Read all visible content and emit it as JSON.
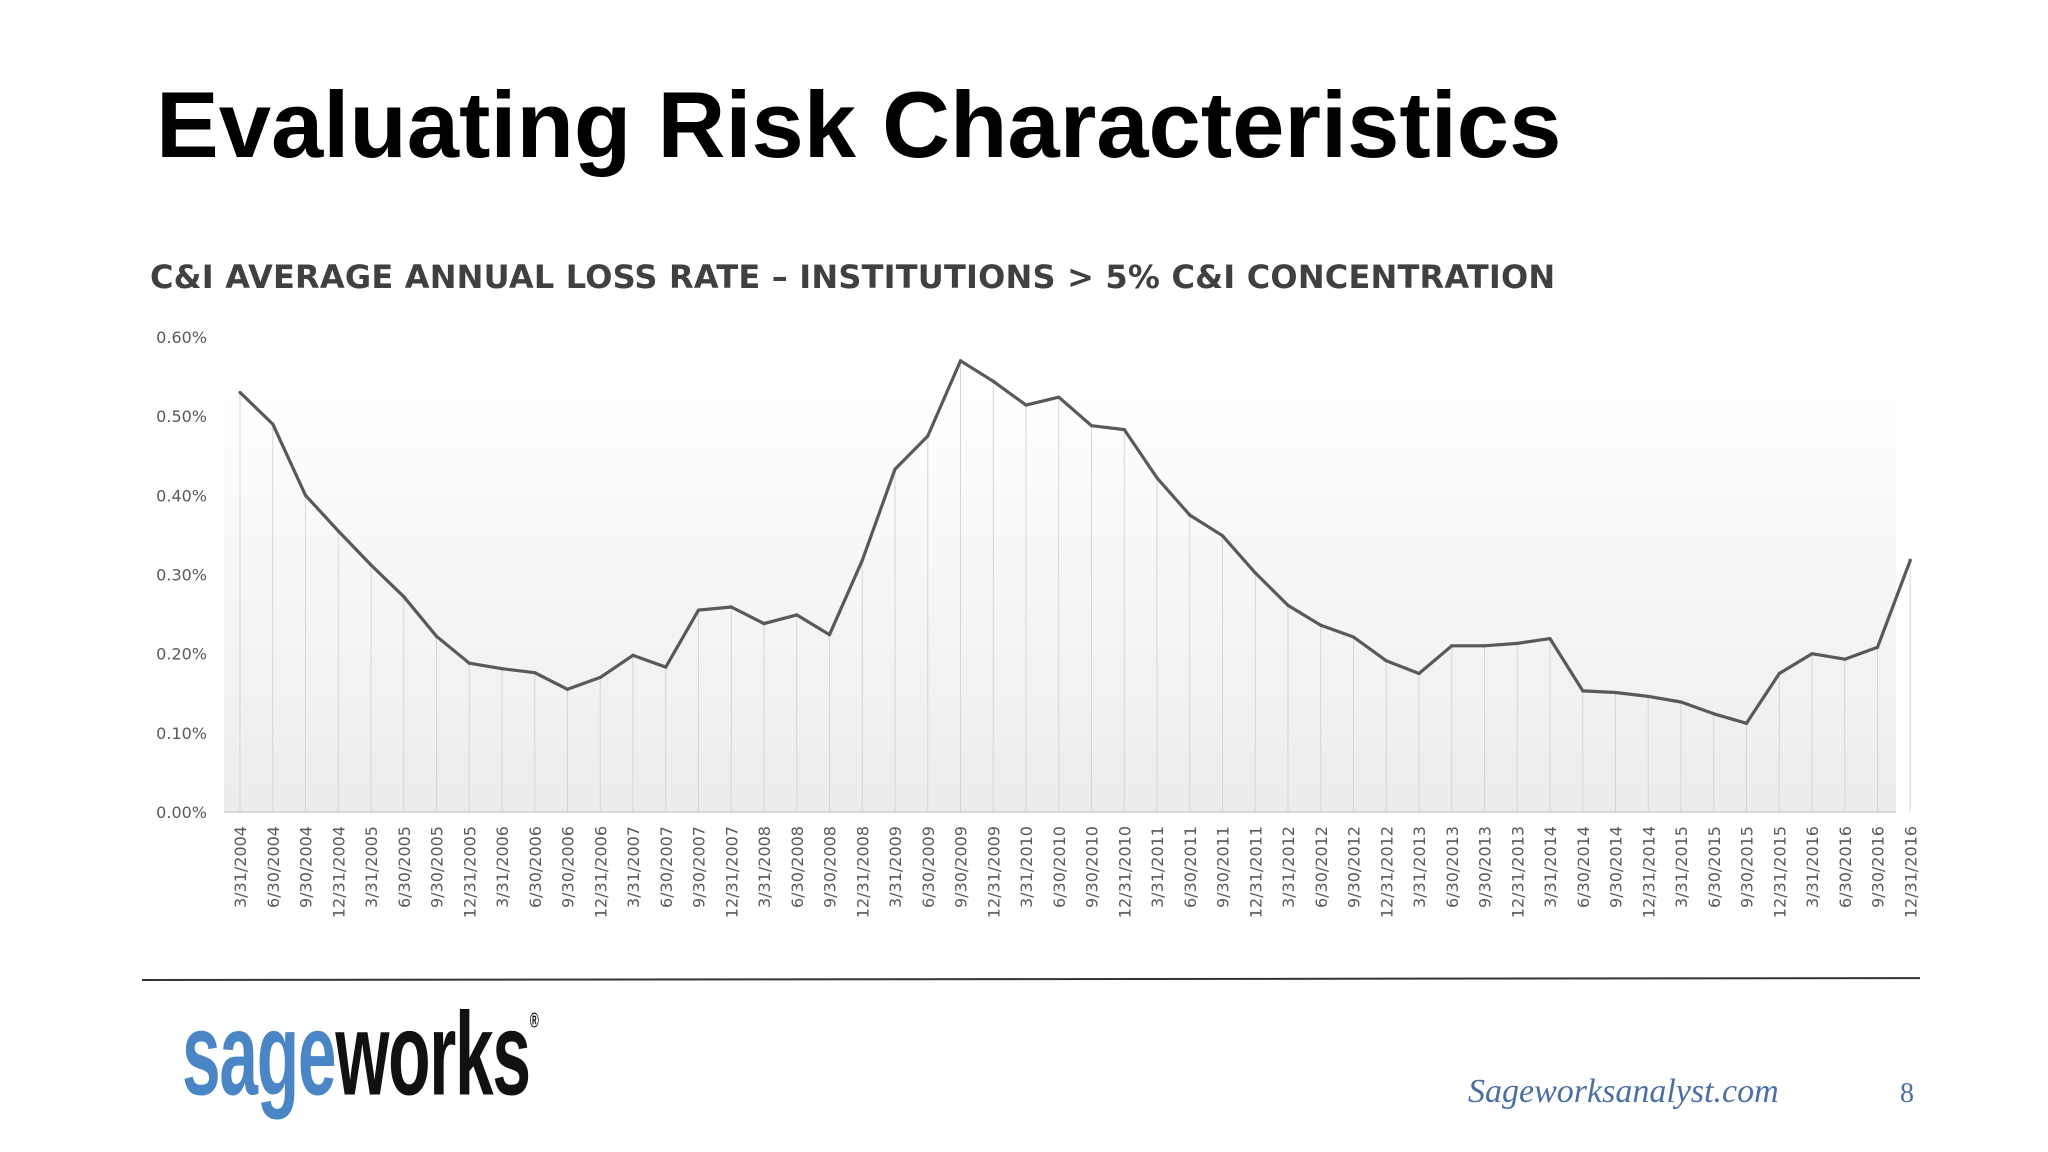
{
  "slide": {
    "title": "Evaluating Risk Characteristics",
    "footer_url": "Sageworksanalyst.com",
    "page_number": "8"
  },
  "logo": {
    "part1": "sage",
    "part2": "works",
    "mark": "®"
  },
  "colors": {
    "line": "#595959",
    "brand_blue": "#4a86c5",
    "url_blue": "#4a6fa5",
    "title": "#000000"
  },
  "chart_data": {
    "type": "line",
    "title": "C&I AVERAGE ANNUAL LOSS RATE – INSTITUTIONS > 5% C&I CONCENTRATION",
    "xlabel": "",
    "ylabel": "",
    "ylim": [
      0,
      0.6
    ],
    "y_ticks": [
      "0.00%",
      "0.10%",
      "0.20%",
      "0.30%",
      "0.40%",
      "0.50%",
      "0.60%"
    ],
    "categories": [
      "3/31/2004",
      "6/30/2004",
      "9/30/2004",
      "12/31/2004",
      "3/31/2005",
      "6/30/2005",
      "9/30/2005",
      "12/31/2005",
      "3/31/2006",
      "6/30/2006",
      "9/30/2006",
      "12/31/2006",
      "3/31/2007",
      "6/30/2007",
      "9/30/2007",
      "12/31/2007",
      "3/31/2008",
      "6/30/2008",
      "9/30/2008",
      "12/31/2008",
      "3/31/2009",
      "6/30/2009",
      "9/30/2009",
      "12/31/2009",
      "3/31/2010",
      "6/30/2010",
      "9/30/2010",
      "12/31/2010",
      "3/31/2011",
      "6/30/2011",
      "9/30/2011",
      "12/31/2011",
      "3/31/2012",
      "6/30/2012",
      "9/30/2012",
      "12/31/2012",
      "3/31/2013",
      "6/30/2013",
      "9/30/2013",
      "12/31/2013",
      "3/31/2014",
      "6/30/2014",
      "9/30/2014",
      "12/31/2014",
      "3/31/2015",
      "6/30/2015",
      "9/30/2015",
      "12/31/2015",
      "3/31/2016",
      "6/30/2016",
      "9/30/2016",
      "12/31/2016"
    ],
    "series": [
      {
        "name": "C&I Average Annual Loss Rate",
        "values": [
          0.53,
          0.49,
          0.4,
          0.355,
          0.312,
          0.272,
          0.222,
          0.188,
          0.181,
          0.176,
          0.155,
          0.17,
          0.198,
          0.183,
          0.255,
          0.259,
          0.238,
          0.249,
          0.224,
          0.318,
          0.433,
          0.475,
          0.57,
          0.544,
          0.514,
          0.524,
          0.488,
          0.483,
          0.422,
          0.375,
          0.349,
          0.302,
          0.261,
          0.236,
          0.221,
          0.191,
          0.175,
          0.21,
          0.21,
          0.213,
          0.219,
          0.153,
          0.151,
          0.146,
          0.139,
          0.124,
          0.112,
          0.175,
          0.2,
          0.193,
          0.208,
          0.318
        ]
      }
    ],
    "grid": false,
    "legend": "none"
  }
}
